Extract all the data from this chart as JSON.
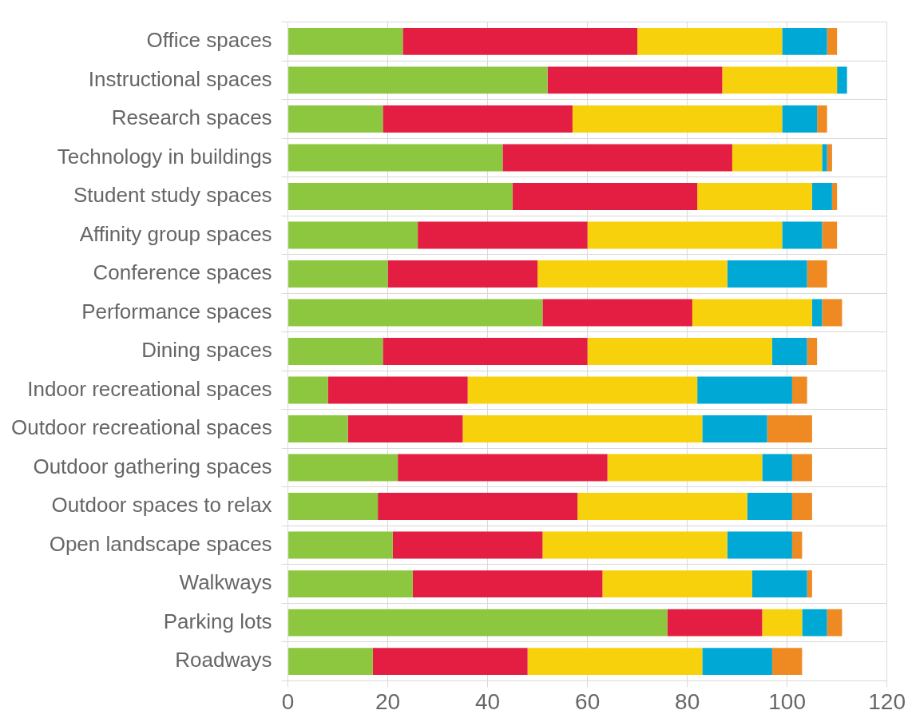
{
  "chart_data": {
    "type": "bar",
    "orientation": "horizontal",
    "stacked": true,
    "grid": true,
    "categories": [
      "Office spaces",
      "Instructional spaces",
      "Research spaces",
      "Technology in buildings",
      "Student study spaces",
      "Affinity group spaces",
      "Conference spaces",
      "Performance spaces",
      "Dining spaces",
      "Indoor recreational spaces",
      "Outdoor recreational spaces",
      "Outdoor gathering spaces",
      "Outdoor spaces to relax",
      "Open landscape spaces",
      "Walkways",
      "Parking lots",
      "Roadways"
    ],
    "series": [
      {
        "color": "#8dc63f",
        "values": [
          23,
          52,
          19,
          43,
          45,
          26,
          20,
          51,
          19,
          8,
          12,
          22,
          18,
          21,
          25,
          76,
          17
        ]
      },
      {
        "color": "#e31e42",
        "values": [
          47,
          35,
          38,
          46,
          37,
          34,
          30,
          30,
          41,
          28,
          23,
          42,
          40,
          30,
          38,
          19,
          31
        ]
      },
      {
        "color": "#f7d10c",
        "values": [
          29,
          23,
          42,
          18,
          23,
          39,
          38,
          24,
          37,
          46,
          48,
          31,
          34,
          37,
          30,
          8,
          35
        ]
      },
      {
        "color": "#00a8d6",
        "values": [
          9,
          2,
          7,
          1,
          4,
          8,
          16,
          2,
          7,
          19,
          13,
          6,
          9,
          13,
          11,
          5,
          14
        ]
      },
      {
        "color": "#ef8a22",
        "values": [
          2,
          0,
          2,
          1,
          1,
          3,
          4,
          4,
          2,
          3,
          9,
          4,
          4,
          2,
          1,
          3,
          6
        ]
      }
    ],
    "xlim": [
      0,
      120
    ],
    "xticks": [
      0,
      20,
      40,
      60,
      80,
      100,
      120
    ]
  }
}
